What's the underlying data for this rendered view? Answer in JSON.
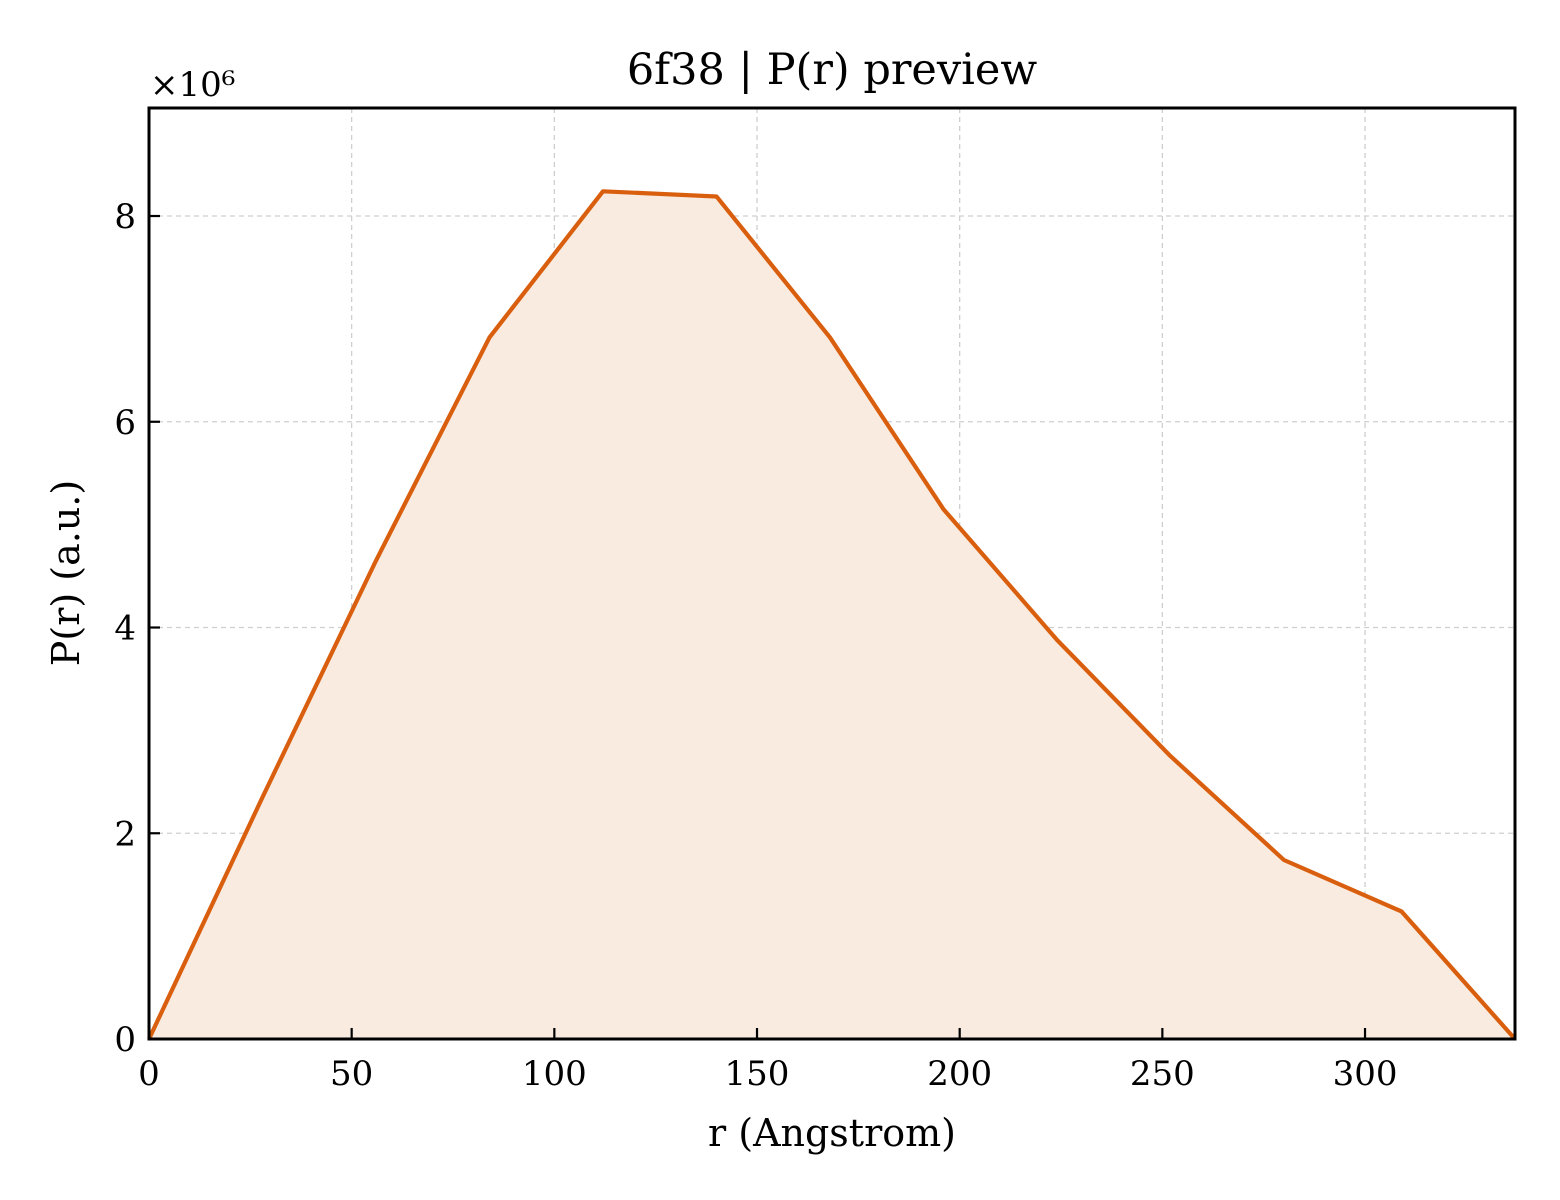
{
  "chart_data": {
    "type": "area",
    "title": "6f38 | P(r) preview",
    "xlabel": "r (Angstrom)",
    "ylabel": "P(r) (a.u.)",
    "y_offset_label": "×10⁶",
    "xlim": [
      0,
      337
    ],
    "ylim": [
      0,
      9.05
    ],
    "xticks": [
      0,
      50,
      100,
      150,
      200,
      250,
      300
    ],
    "yticks": [
      0,
      2,
      4,
      6,
      8
    ],
    "grid": true,
    "line_color": "#d95f0e",
    "fill_color": "#f9ebe0",
    "series": [
      {
        "x": [
          0,
          28,
          56,
          84,
          112,
          140,
          168,
          196,
          224,
          252,
          280,
          309,
          337
        ],
        "y": [
          0,
          2.35,
          4.65,
          6.82,
          8.24,
          8.19,
          6.82,
          5.15,
          3.88,
          2.75,
          1.74,
          1.24,
          0
        ]
      }
    ]
  }
}
